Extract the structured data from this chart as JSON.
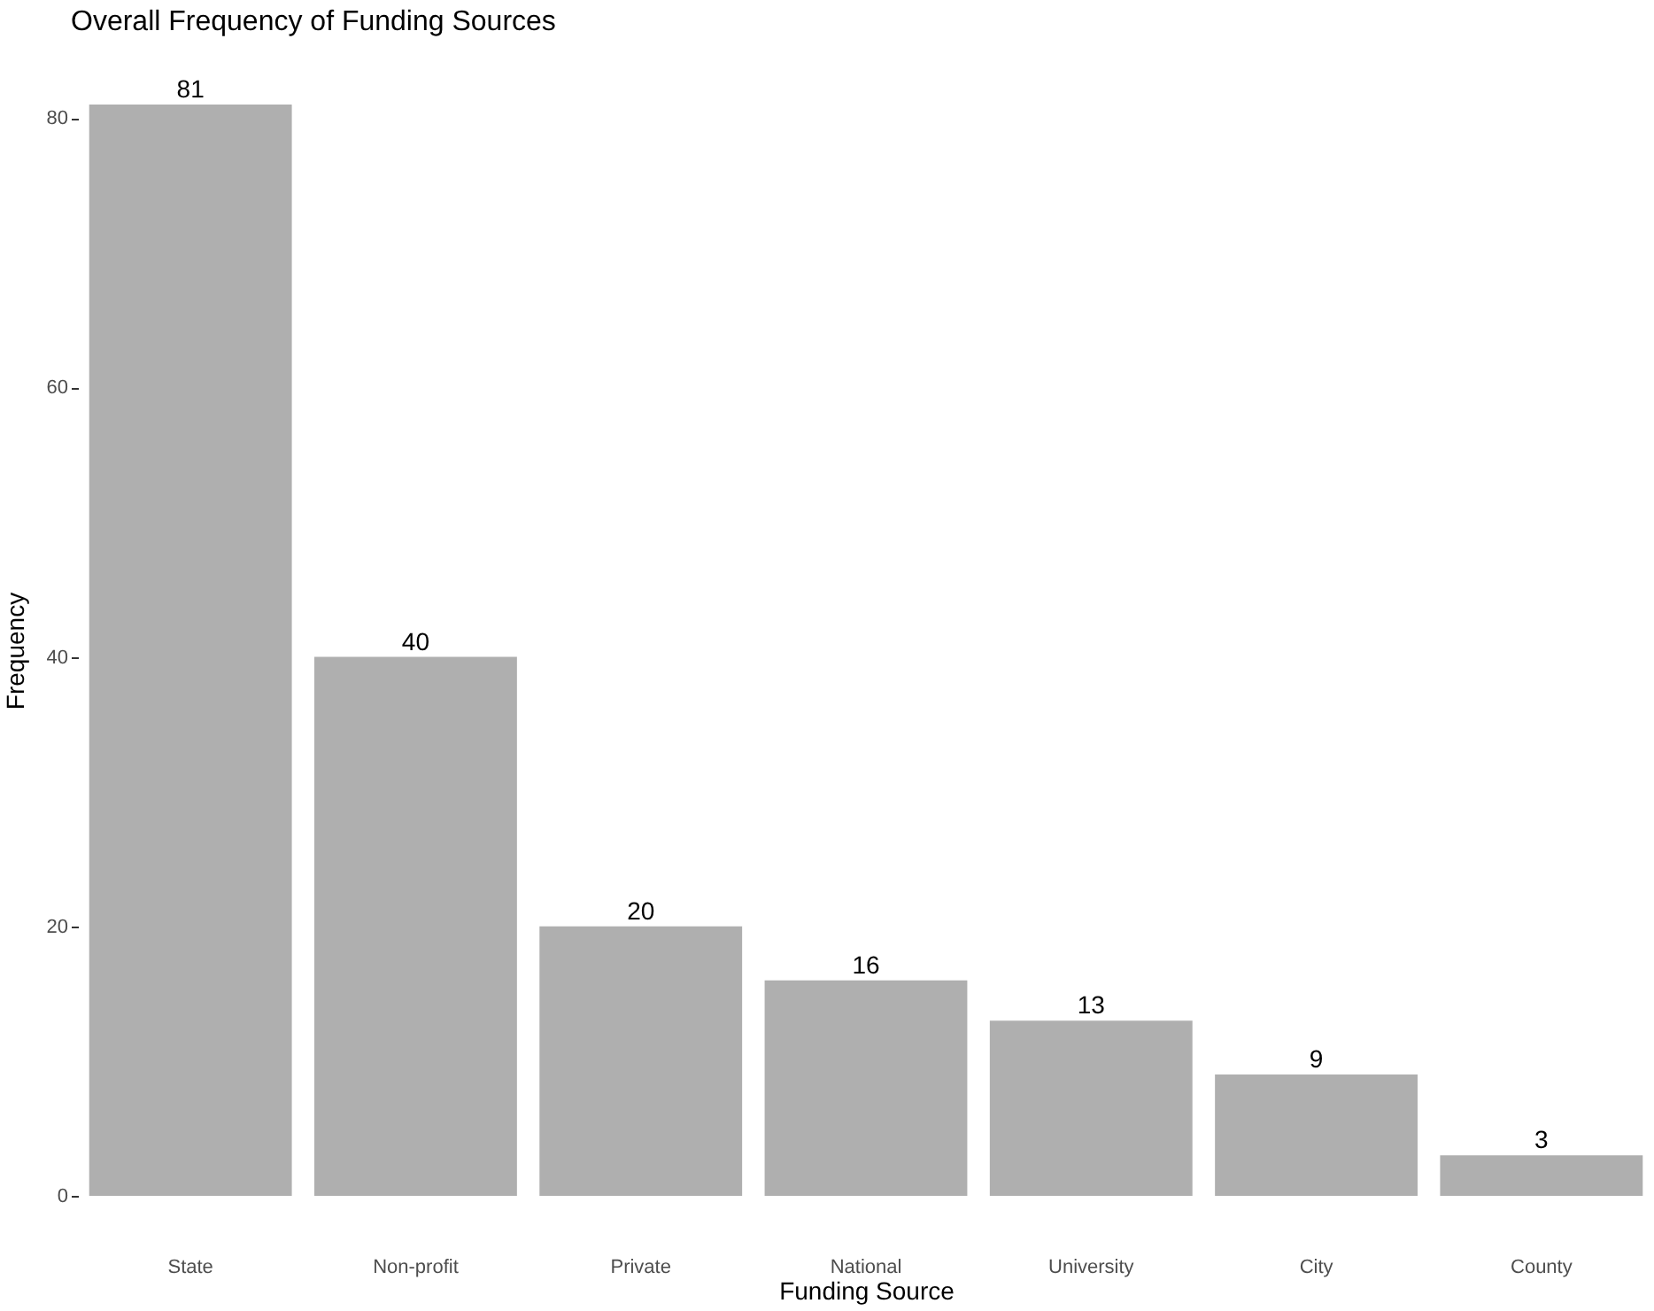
{
  "chart_data": {
    "type": "bar",
    "title": "Overall Frequency of Funding Sources",
    "xlabel": "Funding Source",
    "ylabel": "Frequency",
    "categories": [
      "State",
      "Non-profit",
      "Private",
      "National",
      "University",
      "City",
      "County"
    ],
    "values": [
      81,
      40,
      20,
      16,
      13,
      9,
      3
    ],
    "color": "#afafaf",
    "ylim": [
      0,
      81
    ],
    "yticks": [
      0,
      20,
      40,
      60,
      80
    ],
    "grid": false,
    "data_labels": true
  }
}
